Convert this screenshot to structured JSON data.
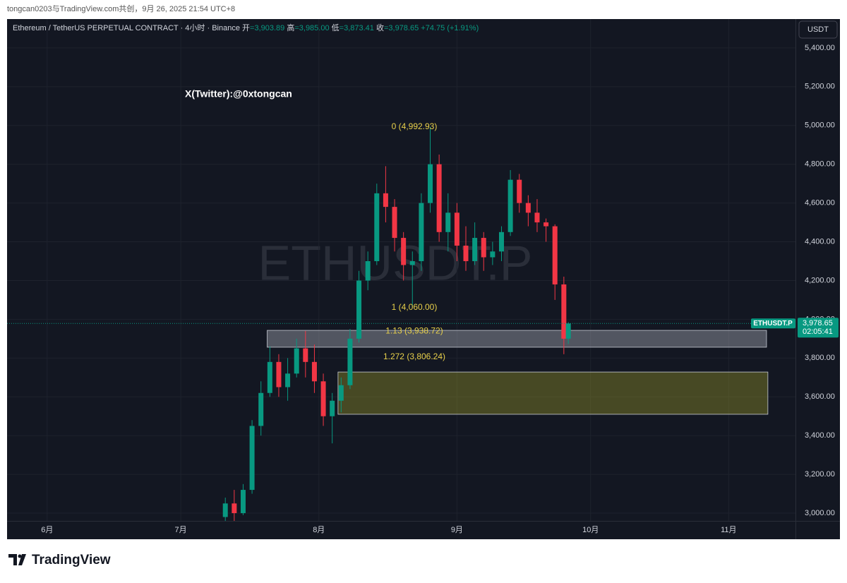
{
  "page": {
    "credit": "tongcan0203与TradingView.com共创，9月 26, 2025 21:54 UTC+8",
    "logo": "TradingView",
    "currency_button": "USDT",
    "watermark": "ETHUSDT.P",
    "author_note": "X(Twitter):@0xtongcan"
  },
  "legend": {
    "symbol": "Ethereum / TetherUS PERPETUAL CONTRACT · 4小时 · Binance",
    "open_label": "开",
    "open": "=3,903.89",
    "high_label": "高",
    "high": "=3,985.00",
    "low_label": "低",
    "low": "=3,873.41",
    "close_label": "收",
    "close": "=3,978.65",
    "change": "+74.75 (+1.91%)"
  },
  "chart_data": {
    "type": "candlestick",
    "x": [
      40,
      42,
      44,
      46,
      48,
      50,
      52,
      54,
      56,
      58,
      60,
      62,
      64,
      66,
      68,
      70,
      72,
      74,
      76,
      78,
      80,
      82,
      84,
      86,
      88,
      90,
      92,
      94,
      96,
      98,
      100,
      102,
      104,
      106,
      108,
      110,
      112,
      114,
      116,
      117
    ],
    "open": [
      2980,
      3050,
      3000,
      3120,
      3450,
      3620,
      3780,
      3650,
      3720,
      3850,
      3780,
      3680,
      3500,
      3580,
      3660,
      3900,
      4200,
      4300,
      4650,
      4580,
      4420,
      4280,
      4300,
      4600,
      4800,
      4450,
      4550,
      4380,
      4300,
      4420,
      4320,
      4350,
      4450,
      4720,
      4600,
      4550,
      4500,
      4480,
      4180,
      3900
    ],
    "high": [
      3080,
      3120,
      3150,
      3480,
      3680,
      3860,
      3820,
      3800,
      3900,
      3940,
      3870,
      3720,
      3620,
      3700,
      3950,
      4250,
      4350,
      4700,
      4790,
      4620,
      4450,
      4350,
      4650,
      4993,
      4850,
      4650,
      4600,
      4480,
      4500,
      4450,
      4400,
      4480,
      4770,
      4750,
      4640,
      4620,
      4520,
      4490,
      4220,
      3985
    ],
    "low": [
      2940,
      2960,
      2990,
      3100,
      3400,
      3600,
      3600,
      3580,
      3700,
      3700,
      3620,
      3450,
      3360,
      3520,
      3640,
      3880,
      4150,
      4280,
      4500,
      4350,
      4200,
      4060,
      4250,
      4550,
      4400,
      4350,
      4300,
      4250,
      4280,
      4250,
      4280,
      4300,
      4430,
      4550,
      4480,
      4450,
      4400,
      4100,
      3820,
      3873
    ],
    "close": [
      3050,
      3000,
      3120,
      3450,
      3620,
      3780,
      3650,
      3720,
      3850,
      3780,
      3680,
      3500,
      3580,
      3660,
      3900,
      4200,
      4300,
      4650,
      4580,
      4420,
      4280,
      4300,
      4600,
      4800,
      4450,
      4550,
      4380,
      4300,
      4420,
      4320,
      4350,
      4450,
      4720,
      4600,
      4550,
      4500,
      4480,
      4180,
      3900,
      3978.65
    ],
    "up_color": "#089981",
    "down_color": "#f23645",
    "xlim": [
      -9,
      168
    ],
    "xticks": [
      {
        "value": 0,
        "label": "6月"
      },
      {
        "value": 30,
        "label": "7月"
      },
      {
        "value": 61,
        "label": "8月"
      },
      {
        "value": 92,
        "label": "9月"
      },
      {
        "value": 122,
        "label": "10月"
      },
      {
        "value": 153,
        "label": "11月"
      }
    ],
    "ylim": [
      2960,
      5549
    ],
    "yticks": [
      {
        "value": 3000,
        "label": "3,000.00"
      },
      {
        "value": 3200,
        "label": "3,200.00"
      },
      {
        "value": 3400,
        "label": "3,400.00"
      },
      {
        "value": 3600,
        "label": "3,600.00"
      },
      {
        "value": 3800,
        "label": "3,800.00"
      },
      {
        "value": 4000,
        "label": "4,000.00"
      },
      {
        "value": 4200,
        "label": "4,200.00"
      },
      {
        "value": 4400,
        "label": "4,400.00"
      },
      {
        "value": 4600,
        "label": "4,600.00"
      },
      {
        "value": 4800,
        "label": "4,800.00"
      },
      {
        "value": 5000,
        "label": "5,000.00"
      },
      {
        "value": 5200,
        "label": "5,200.00"
      },
      {
        "value": 5400,
        "label": "5,400.00"
      }
    ],
    "grid": true,
    "fib_levels": [
      {
        "label": "0 (4,992.93)",
        "price": 4992.93
      },
      {
        "label": "1 (4,060.00)",
        "price": 4060
      },
      {
        "label": "1.13 (3,938.72)",
        "price": 3938.72
      },
      {
        "label": "1.272 (3,806.24)",
        "price": 3806.24
      }
    ],
    "fib_color": "#e8d04a",
    "zones": [
      {
        "top": 3943,
        "bottom": 3856,
        "x0": 49.4,
        "x1": 161.5,
        "color": "rgba(200,204,214,0.35)"
      },
      {
        "top": 3728,
        "bottom": 3510,
        "x0": 65.3,
        "x1": 161.8,
        "color": "rgba(150,150,40,0.4)"
      }
    ],
    "last_price": 3978.65,
    "last_price_label": "3,978.65",
    "countdown": "02:05:41",
    "symbol_tag": "ETHUSDT.P"
  }
}
